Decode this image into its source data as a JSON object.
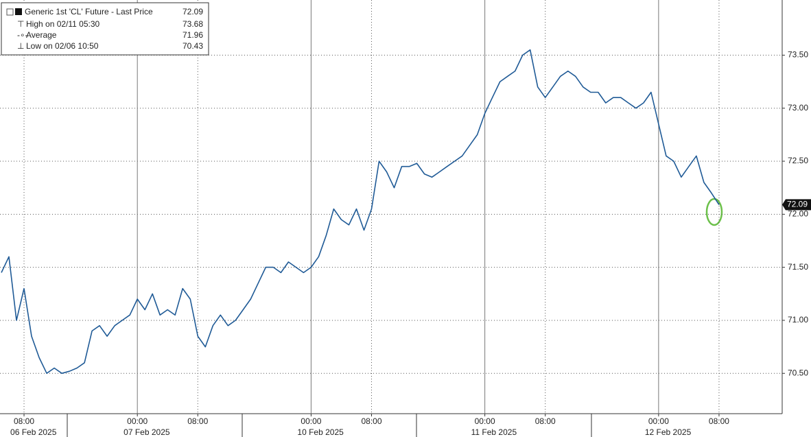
{
  "chart_data": {
    "type": "line",
    "legend_box": {
      "title": "Generic 1st 'CL' Future - Last Price",
      "value": 72.09,
      "rows": [
        {
          "label": "High on 02/11 05:30",
          "value": 73.68
        },
        {
          "label": "Average",
          "value": 71.96
        },
        {
          "label": "Low on 02/06 10:50",
          "value": 70.43
        }
      ]
    },
    "last_price_tag": 72.09,
    "color": "#1f5a96",
    "categories": [
      null,
      null,
      null,
      "08:00",
      null,
      null,
      null,
      null,
      null,
      null,
      null,
      null,
      null,
      null,
      null,
      null,
      null,
      null,
      "00:00",
      null,
      null,
      null,
      null,
      null,
      null,
      null,
      "08:00",
      null,
      null,
      null,
      null,
      null,
      null,
      null,
      null,
      null,
      null,
      null,
      null,
      null,
      null,
      "00:00",
      null,
      null,
      null,
      null,
      null,
      null,
      null,
      "08:00",
      null,
      null,
      null,
      null,
      null,
      null,
      null,
      null,
      null,
      null,
      null,
      null,
      null,
      null,
      "00:00",
      null,
      null,
      null,
      null,
      null,
      null,
      null,
      "08:00",
      null,
      null,
      null,
      null,
      null,
      null,
      null,
      null,
      null,
      null,
      null,
      null,
      null,
      null,
      "00:00",
      null,
      null,
      null,
      null,
      null,
      null,
      null,
      "08:00"
    ],
    "dates": [
      null,
      null,
      null,
      "06 Feb 2025",
      null,
      null,
      null,
      null,
      null,
      null,
      null,
      null,
      null,
      null,
      null,
      null,
      null,
      null,
      "07 Feb 2025",
      null,
      null,
      null,
      null,
      null,
      null,
      null,
      null,
      null,
      null,
      null,
      null,
      null,
      null,
      null,
      null,
      null,
      null,
      null,
      null,
      null,
      null,
      "10 Feb 2025",
      null,
      null,
      null,
      null,
      null,
      null,
      null,
      null,
      null,
      null,
      null,
      null,
      null,
      null,
      null,
      null,
      null,
      null,
      null,
      null,
      null,
      null,
      "11 Feb 2025",
      null,
      null,
      null,
      null,
      null,
      null,
      null,
      null,
      null,
      null,
      null,
      null,
      null,
      null,
      null,
      null,
      null,
      null,
      null,
      null,
      null,
      null,
      "12 Feb 2025",
      null,
      null,
      null,
      null,
      null,
      null,
      null,
      null
    ],
    "values": [
      71.45,
      71.6,
      71.0,
      71.3,
      70.85,
      70.65,
      70.5,
      70.55,
      70.5,
      70.52,
      70.55,
      70.6,
      70.9,
      70.95,
      70.85,
      70.95,
      71.0,
      71.05,
      71.2,
      71.1,
      71.25,
      71.05,
      71.1,
      71.05,
      71.3,
      71.2,
      70.85,
      70.75,
      70.95,
      71.05,
      70.95,
      71.0,
      71.1,
      71.2,
      71.35,
      71.5,
      71.5,
      71.45,
      71.55,
      71.5,
      71.45,
      71.5,
      71.6,
      71.8,
      72.05,
      71.95,
      71.9,
      72.05,
      71.85,
      72.05,
      72.5,
      72.4,
      72.25,
      72.45,
      72.45,
      72.48,
      72.38,
      72.35,
      72.4,
      72.45,
      72.5,
      72.55,
      72.65,
      72.75,
      72.95,
      73.1,
      73.25,
      73.3,
      73.35,
      73.5,
      73.55,
      73.2,
      73.1,
      73.2,
      73.3,
      73.35,
      73.3,
      73.2,
      73.15,
      73.15,
      73.05,
      73.1,
      73.1,
      73.05,
      73.0,
      73.05,
      73.15,
      72.85,
      72.55,
      72.5,
      72.35,
      72.45,
      72.55,
      72.3,
      72.2,
      72.09
    ],
    "ylim": [
      70.12,
      74.02
    ],
    "yticks": [
      {
        "value": 70.5,
        "label": "70.50"
      },
      {
        "value": 71,
        "label": "71.00"
      },
      {
        "value": 71.5,
        "label": "71.50"
      },
      {
        "value": 72,
        "label": "72.00"
      },
      {
        "value": 72.5,
        "label": "72.50"
      },
      {
        "value": 73,
        "label": "73.00"
      },
      {
        "value": 73.5,
        "label": "73.50"
      }
    ],
    "grid": true
  }
}
